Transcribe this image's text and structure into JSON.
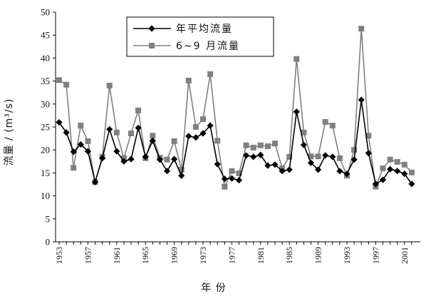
{
  "chart_data": {
    "type": "line",
    "xlabel": "年 份",
    "ylabel": "流量 / (m³/s)",
    "ylim": [
      0,
      50
    ],
    "yticks": [
      0,
      5,
      10,
      15,
      20,
      25,
      30,
      35,
      40,
      45,
      50
    ],
    "xticks": [
      1953,
      1957,
      1961,
      1965,
      1969,
      1973,
      1977,
      1981,
      1985,
      1989,
      1993,
      1997,
      2001
    ],
    "grid": false,
    "legend": "top-center",
    "x": [
      1953,
      1954,
      1955,
      1956,
      1957,
      1958,
      1959,
      1960,
      1961,
      1962,
      1963,
      1964,
      1965,
      1966,
      1967,
      1968,
      1969,
      1970,
      1971,
      1972,
      1973,
      1974,
      1975,
      1976,
      1977,
      1978,
      1979,
      1980,
      1981,
      1982,
      1983,
      1984,
      1985,
      1986,
      1987,
      1988,
      1989,
      1990,
      1991,
      1992,
      1993,
      1994,
      1995,
      1996,
      1997,
      1998,
      1999,
      2000,
      2001,
      2002
    ],
    "series": [
      {
        "name": "年平均流量",
        "color": "#000000",
        "marker": "diamond",
        "values": [
          26.0,
          23.8,
          19.6,
          21.2,
          19.7,
          13.0,
          18.2,
          24.5,
          19.7,
          17.5,
          18.0,
          24.8,
          18.5,
          22.0,
          17.9,
          15.4,
          18.0,
          14.4,
          23.0,
          22.7,
          23.6,
          25.3,
          16.9,
          13.7,
          13.8,
          13.4,
          18.8,
          18.5,
          18.9,
          16.6,
          16.8,
          15.4,
          15.7,
          28.3,
          21.1,
          17.2,
          15.7,
          18.8,
          18.5,
          15.4,
          14.8,
          17.9,
          30.9,
          19.3,
          12.6,
          13.5,
          15.8,
          15.4,
          14.8,
          12.6
        ]
      },
      {
        "name": "6~9 月流量",
        "color": "#808080",
        "marker": "square",
        "values": [
          35.2,
          34.2,
          16.1,
          25.3,
          21.9,
          13.0,
          18.5,
          34.0,
          23.8,
          18.2,
          23.6,
          28.6,
          18.2,
          23.1,
          18.3,
          17.9,
          21.9,
          15.7,
          35.1,
          25.0,
          26.7,
          36.5,
          22.0,
          12.0,
          15.4,
          14.9,
          21.0,
          20.5,
          21.0,
          20.8,
          21.4,
          16.0,
          18.5,
          39.8,
          23.8,
          18.6,
          18.6,
          26.1,
          25.3,
          18.2,
          14.4,
          20.0,
          46.4,
          23.1,
          12.0,
          16.0,
          17.9,
          17.4,
          16.8,
          15.1
        ]
      }
    ]
  }
}
